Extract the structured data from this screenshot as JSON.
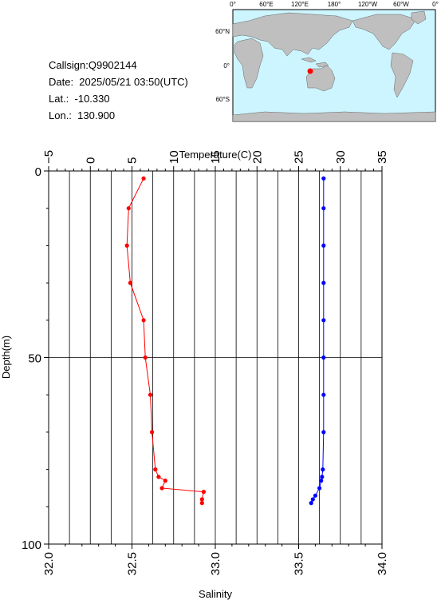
{
  "station": {
    "callsign": "Callsign:Q9902144",
    "date": "Date:  2025/05/21 03:50(UTC)",
    "lat": "Lat.:  -10.330",
    "lon": "Lon.:  130.900"
  },
  "map": {
    "top_labels": [
      "0°",
      "60°E",
      "120°E",
      "180°",
      "120°W",
      "60°W",
      "0°"
    ],
    "left_labels": [
      "60°N",
      "0°",
      "60°S"
    ],
    "ocean_color": "#ccf5ff",
    "land_color": "#bfbfbf",
    "marker_color": "#ff0000"
  },
  "chart_data": {
    "type": "line",
    "title": "",
    "ylabel": "Depth(m)",
    "ylim": [
      0,
      100
    ],
    "y_ticks": [
      "0",
      "50",
      "100"
    ],
    "top_axis": {
      "label": "Temperature(C)",
      "range": [
        -5,
        35
      ],
      "ticks": [
        "−5",
        "0",
        "5",
        "10",
        "15",
        "20",
        "25",
        "30",
        "35"
      ]
    },
    "bottom_axis": {
      "label": "Salinity",
      "range": [
        32.0,
        34.0
      ],
      "ticks": [
        "32.0",
        "32.5",
        "33.0",
        "33.5",
        "34.0"
      ]
    },
    "grid": true,
    "series": [
      {
        "axis": "salinity",
        "color": "#ff0000",
        "points": [
          [
            32.57,
            2
          ],
          [
            32.48,
            10
          ],
          [
            32.47,
            20
          ],
          [
            32.49,
            30
          ],
          [
            32.57,
            40
          ],
          [
            32.58,
            50
          ],
          [
            32.61,
            60
          ],
          [
            32.62,
            70
          ],
          [
            32.64,
            80
          ],
          [
            32.66,
            82
          ],
          [
            32.7,
            83
          ],
          [
            32.68,
            85
          ],
          [
            32.93,
            86
          ],
          [
            32.92,
            88
          ],
          [
            32.92,
            89
          ]
        ]
      },
      {
        "axis": "temperature",
        "color": "#0000ff",
        "points": [
          [
            28.0,
            2
          ],
          [
            28.0,
            10
          ],
          [
            28.0,
            20
          ],
          [
            28.0,
            30
          ],
          [
            28.0,
            40
          ],
          [
            28.0,
            50
          ],
          [
            28.0,
            60
          ],
          [
            28.0,
            70
          ],
          [
            27.9,
            80
          ],
          [
            27.8,
            82
          ],
          [
            27.7,
            83
          ],
          [
            27.5,
            85
          ],
          [
            27.0,
            87
          ],
          [
            26.7,
            88
          ],
          [
            26.5,
            89
          ]
        ]
      }
    ]
  }
}
